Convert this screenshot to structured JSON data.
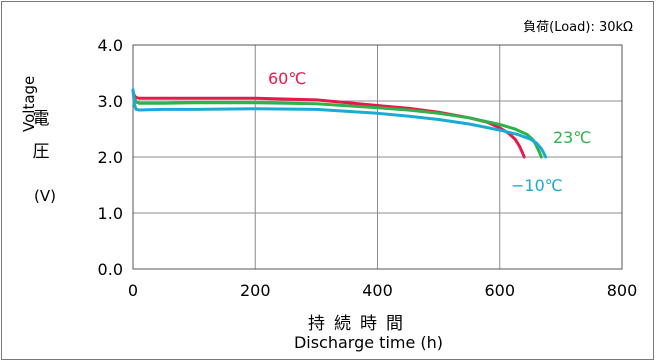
{
  "load_note": "負荷(Load): 30kΩ",
  "chart_data": {
    "type": "line",
    "ylabel_en": "Voltage",
    "ylabel_ja": [
      "電",
      "圧"
    ],
    "ylabel_unit": "(V)",
    "xlabel_ja": "持続時間",
    "xlabel_en": "Discharge time (h)",
    "xlim": [
      0,
      800
    ],
    "ylim": [
      0.0,
      4.0
    ],
    "xticks": [
      0,
      200,
      400,
      600,
      800
    ],
    "yticks": [
      0.0,
      1.0,
      2.0,
      3.0,
      4.0
    ],
    "ytick_labels": [
      "0.0",
      "1.0",
      "2.0",
      "3.0",
      "4.0"
    ],
    "grid": true,
    "series": [
      {
        "name": "60℃",
        "color": "#e8194a",
        "x": [
          0,
          2,
          5,
          10,
          50,
          100,
          200,
          300,
          400,
          450,
          500,
          550,
          580,
          600,
          615,
          625,
          632,
          637,
          640
        ],
        "y": [
          3.18,
          3.1,
          3.06,
          3.05,
          3.05,
          3.05,
          3.05,
          3.02,
          2.92,
          2.87,
          2.8,
          2.7,
          2.62,
          2.52,
          2.42,
          2.32,
          2.2,
          2.08,
          2.0
        ]
      },
      {
        "name": "23℃",
        "color": "#2db34a",
        "x": [
          0,
          2,
          5,
          10,
          50,
          100,
          200,
          300,
          400,
          450,
          500,
          550,
          600,
          625,
          645,
          655,
          660,
          665,
          668
        ],
        "y": [
          3.18,
          3.05,
          2.98,
          2.96,
          2.96,
          2.97,
          2.97,
          2.95,
          2.88,
          2.84,
          2.78,
          2.7,
          2.58,
          2.5,
          2.4,
          2.3,
          2.2,
          2.08,
          2.0
        ]
      },
      {
        "name": "−10℃",
        "color": "#1aabd3",
        "x": [
          0,
          2,
          5,
          10,
          50,
          100,
          200,
          300,
          400,
          450,
          500,
          550,
          600,
          630,
          650,
          660,
          668,
          672,
          675
        ],
        "y": [
          3.2,
          2.95,
          2.85,
          2.84,
          2.85,
          2.85,
          2.86,
          2.85,
          2.78,
          2.73,
          2.67,
          2.59,
          2.48,
          2.4,
          2.32,
          2.25,
          2.15,
          2.07,
          2.0
        ]
      }
    ]
  }
}
